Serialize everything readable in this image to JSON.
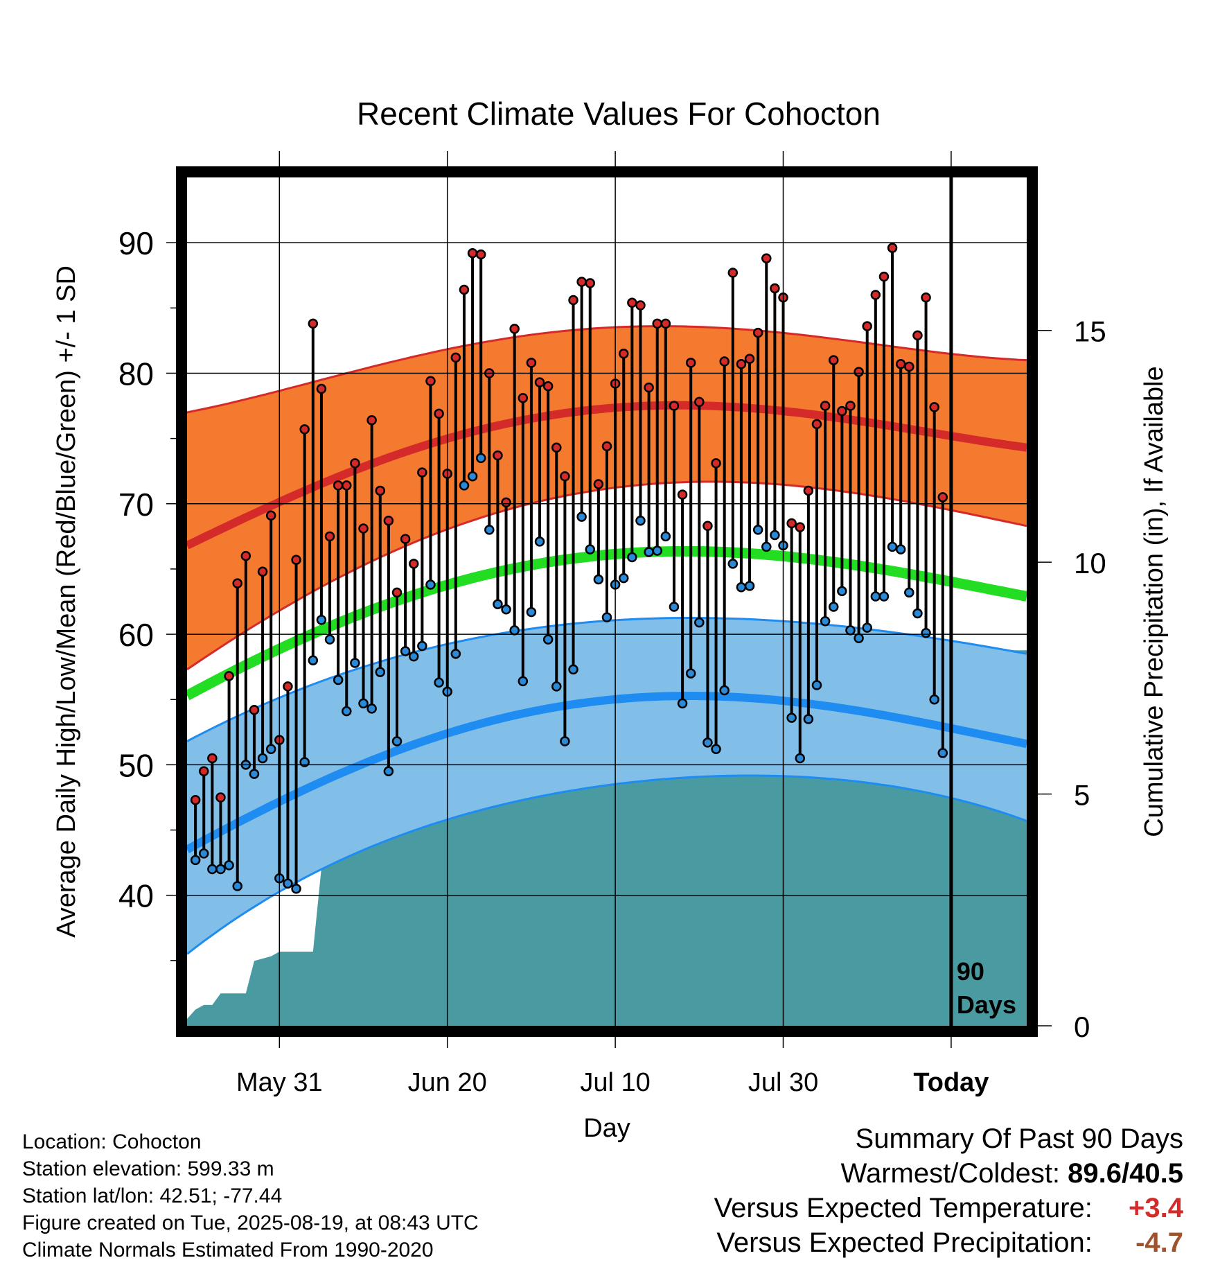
{
  "chart_data": {
    "type": "line",
    "title": "Recent Climate Values For Cohocton",
    "xlabel": "Day",
    "ylabel": "Average Daily High/Low/Mean (Red/Blue/Green) +/- 1 SD",
    "y2label": "Cumulative Precipitation (in), If Available",
    "x_tick_labels": [
      "May 31",
      "Jun 20",
      "Jul 10",
      "Jul 30",
      "Today"
    ],
    "x_tick_days": [
      10,
      30,
      50,
      70,
      90
    ],
    "x_range_days": [
      -1,
      99
    ],
    "y_ticks": [
      40,
      50,
      60,
      70,
      80,
      90
    ],
    "ylim": [
      30,
      95
    ],
    "y2_ticks": [
      0,
      5,
      10,
      15
    ],
    "y2lim": [
      0,
      18.3
    ],
    "today_label": "90 Days",
    "grid": true,
    "normals_high": {
      "days": [
        -1,
        29,
        54,
        74,
        99
      ],
      "mean": [
        66.8,
        74.8,
        77.5,
        76.8,
        74.3
      ],
      "sd_upper": [
        77.0,
        81.7,
        83.6,
        82.8,
        81.0
      ],
      "sd_lower": [
        57.3,
        67.8,
        71.5,
        71.2,
        68.3
      ]
    },
    "normals_low": {
      "days": [
        -1,
        29,
        54,
        74,
        99
      ],
      "mean": [
        43.5,
        52.2,
        55.2,
        54.6,
        51.6
      ],
      "sd_upper": [
        51.8,
        59.1,
        61.2,
        60.8,
        58.5
      ],
      "sd_lower": [
        35.5,
        45.6,
        48.8,
        49.0,
        45.7
      ]
    },
    "normals_mean": {
      "days": [
        -1,
        29,
        54,
        74,
        99
      ],
      "mean": [
        55.3,
        63.6,
        66.3,
        65.7,
        62.9
      ]
    },
    "daily_high": [
      47.3,
      49.5,
      50.5,
      47.5,
      56.8,
      63.9,
      66.0,
      54.2,
      64.8,
      69.1,
      51.9,
      56.0,
      65.7,
      75.7,
      83.8,
      78.8,
      67.5,
      71.4,
      71.4,
      73.1,
      68.1,
      76.4,
      71.0,
      68.7,
      63.2,
      67.3,
      65.4,
      72.4,
      79.4,
      76.9,
      72.3,
      81.2,
      86.4,
      89.2,
      89.1,
      80.0,
      73.7,
      70.1,
      83.4,
      78.1,
      80.8,
      79.3,
      79.0,
      74.3,
      72.1,
      85.6,
      87.0,
      86.9,
      71.5,
      74.4,
      79.2,
      81.5,
      85.4,
      85.2,
      78.9,
      83.8,
      83.8,
      77.5,
      70.7,
      80.8,
      77.8,
      68.3,
      73.1,
      80.9,
      87.7,
      80.7,
      81.1,
      83.1,
      88.8,
      86.5,
      85.8,
      68.5,
      68.2,
      71.0,
      76.1,
      77.5,
      81.0,
      77.1,
      77.5,
      80.1,
      83.6,
      86.0,
      87.4,
      89.6,
      80.7,
      80.5,
      82.9,
      85.8,
      77.4,
      70.5
    ],
    "daily_low": [
      42.7,
      43.2,
      42.0,
      42.0,
      42.3,
      40.7,
      50.0,
      49.3,
      50.5,
      51.2,
      41.3,
      40.9,
      40.5,
      50.2,
      58.0,
      61.1,
      59.6,
      56.5,
      54.1,
      57.8,
      54.7,
      54.3,
      57.1,
      49.5,
      51.8,
      58.7,
      58.3,
      59.1,
      63.8,
      56.3,
      55.6,
      58.5,
      71.4,
      72.1,
      73.5,
      68.0,
      62.3,
      61.9,
      60.3,
      56.4,
      61.7,
      67.1,
      59.6,
      56.0,
      51.8,
      57.3,
      69.0,
      66.5,
      64.2,
      61.3,
      63.8,
      64.3,
      65.9,
      68.7,
      66.3,
      66.4,
      67.5,
      62.1,
      54.7,
      57.0,
      60.9,
      51.7,
      51.2,
      55.7,
      65.4,
      63.6,
      63.7,
      68.0,
      66.7,
      67.6,
      66.8,
      53.6,
      50.5,
      53.5,
      56.1,
      61.0,
      62.1,
      63.3,
      60.3,
      59.7,
      60.5,
      62.9,
      62.9,
      66.7,
      66.5,
      63.2,
      61.6,
      60.1,
      55.0,
      50.9
    ],
    "cumulative_precip": {
      "days": [
        -1,
        0,
        1,
        2,
        3,
        4,
        5,
        6,
        7,
        8,
        9,
        10,
        11,
        12,
        13,
        14,
        15,
        16,
        17,
        18,
        19,
        20,
        21,
        24,
        26,
        27,
        29,
        30,
        34,
        38,
        42,
        44,
        47,
        50,
        53,
        55,
        57,
        61,
        64,
        68,
        70,
        71,
        72,
        74,
        78,
        82,
        86,
        88,
        90,
        99
      ],
      "values": [
        0.15,
        0.35,
        0.45,
        0.45,
        0.7,
        0.7,
        0.7,
        0.7,
        1.4,
        1.45,
        1.5,
        1.6,
        1.6,
        1.6,
        1.6,
        1.6,
        3.4,
        4.1,
        4.7,
        5.1,
        5.35,
        5.45,
        5.45,
        5.45,
        5.5,
        5.5,
        5.7,
        5.9,
        5.9,
        5.95,
        6.0,
        6.2,
        6.2,
        6.35,
        6.5,
        6.5,
        6.7,
        6.7,
        6.7,
        6.75,
        7.0,
        7.95,
        7.95,
        7.95,
        7.95,
        7.95,
        8.0,
        8.1,
        8.1,
        8.1
      ]
    }
  },
  "info": {
    "location": "Location: Cohocton",
    "elevation": "Station elevation: 599.33 m",
    "latlon": "Station lat/lon: 42.51; -77.44",
    "created": "Figure created on Tue, 2025-08-19, at 08:43 UTC",
    "normals": "Climate Normals Estimated From 1990-2020"
  },
  "summary": {
    "title": "Summary Of Past 90 Days",
    "warm_label": "Warmest/Coldest:",
    "warm_value": "89.6/40.5",
    "temp_label": "Versus Expected Temperature:",
    "temp_value": "+3.4",
    "precip_label": "Versus Expected Precipitation:",
    "precip_value": "-4.7"
  },
  "colors": {
    "high_band": "#f47a30",
    "high_line": "#d42a2a",
    "low_band": "#82bfe8",
    "low_line": "#1e8cf0",
    "mean_line": "#22dd22",
    "precip_fill": "#4a9aa2",
    "high_dot": "#d42a2a",
    "low_dot": "#2a8ad8"
  }
}
